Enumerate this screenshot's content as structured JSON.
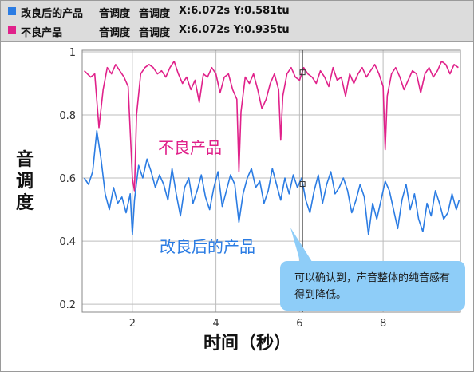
{
  "legend": [
    {
      "name": "改良后的产品",
      "color": "#2b7ce3",
      "label1": "音调度",
      "label2": "音调度",
      "readout": "X:6.072s Y:0.581tu"
    },
    {
      "name": "不良产品",
      "color": "#e0218a",
      "label1": "音调度",
      "label2": "音调度",
      "readout": "X:6.072s Y:0.935tu"
    }
  ],
  "callout": {
    "text": "可以确认到，声音整体的纯音感有得到降低。"
  },
  "chart_data": {
    "type": "line",
    "xlabel": "时间（秒）",
    "ylabel": "音调度",
    "xlim": [
      0.8,
      9.85
    ],
    "ylim": [
      0.175,
      1.005
    ],
    "xticks": [
      2,
      4,
      6,
      8
    ],
    "yticks": [
      0.2,
      0.4,
      0.6,
      0.8,
      1
    ],
    "ytick_labels": [
      "0.2",
      "0.4",
      "0.6",
      "0.8",
      "1"
    ],
    "grid": true,
    "cursor_x": 6.072,
    "annotations": [
      {
        "text": "不良产品",
        "color": "#e0218a"
      },
      {
        "text": "改良后的产品",
        "color": "#2b7ce3"
      }
    ],
    "series": [
      {
        "name": "不良产品",
        "color": "#e0218a",
        "x": [
          0.85,
          1.0,
          1.1,
          1.2,
          1.3,
          1.4,
          1.5,
          1.6,
          1.7,
          1.8,
          1.9,
          2.0,
          2.05,
          2.1,
          2.2,
          2.3,
          2.4,
          2.5,
          2.6,
          2.7,
          2.8,
          2.9,
          3.0,
          3.1,
          3.2,
          3.3,
          3.4,
          3.5,
          3.6,
          3.7,
          3.8,
          3.9,
          4.0,
          4.1,
          4.2,
          4.3,
          4.4,
          4.5,
          4.55,
          4.6,
          4.7,
          4.8,
          4.9,
          5.0,
          5.1,
          5.2,
          5.3,
          5.4,
          5.5,
          5.55,
          5.6,
          5.7,
          5.8,
          5.9,
          6.0,
          6.1,
          6.2,
          6.3,
          6.4,
          6.5,
          6.6,
          6.7,
          6.8,
          6.9,
          7.0,
          7.1,
          7.2,
          7.3,
          7.4,
          7.5,
          7.6,
          7.7,
          7.8,
          7.9,
          8.0,
          8.05,
          8.1,
          8.2,
          8.3,
          8.4,
          8.5,
          8.6,
          8.7,
          8.8,
          8.9,
          9.0,
          9.1,
          9.2,
          9.3,
          9.4,
          9.5,
          9.6,
          9.7,
          9.8
        ],
        "values": [
          0.94,
          0.92,
          0.93,
          0.76,
          0.88,
          0.95,
          0.93,
          0.96,
          0.94,
          0.92,
          0.89,
          0.6,
          0.56,
          0.8,
          0.93,
          0.95,
          0.96,
          0.95,
          0.93,
          0.94,
          0.92,
          0.95,
          0.97,
          0.93,
          0.9,
          0.92,
          0.88,
          0.91,
          0.84,
          0.93,
          0.92,
          0.95,
          0.93,
          0.87,
          0.92,
          0.93,
          0.88,
          0.85,
          0.62,
          0.81,
          0.92,
          0.9,
          0.93,
          0.88,
          0.82,
          0.85,
          0.9,
          0.93,
          0.88,
          0.72,
          0.86,
          0.93,
          0.95,
          0.92,
          0.91,
          0.95,
          0.93,
          0.92,
          0.9,
          0.94,
          0.92,
          0.89,
          0.95,
          0.91,
          0.92,
          0.86,
          0.93,
          0.9,
          0.93,
          0.95,
          0.92,
          0.94,
          0.96,
          0.93,
          0.89,
          0.69,
          0.86,
          0.93,
          0.95,
          0.92,
          0.88,
          0.91,
          0.94,
          0.93,
          0.87,
          0.93,
          0.95,
          0.92,
          0.94,
          0.97,
          0.96,
          0.93,
          0.96,
          0.95
        ]
      },
      {
        "name": "改良后的产品",
        "color": "#2b7ce3",
        "x": [
          0.85,
          0.95,
          1.05,
          1.15,
          1.25,
          1.35,
          1.45,
          1.55,
          1.65,
          1.75,
          1.85,
          1.95,
          2.0,
          2.05,
          2.15,
          2.25,
          2.35,
          2.45,
          2.55,
          2.65,
          2.75,
          2.85,
          2.95,
          3.05,
          3.15,
          3.25,
          3.35,
          3.45,
          3.55,
          3.65,
          3.75,
          3.85,
          3.95,
          4.05,
          4.15,
          4.25,
          4.35,
          4.45,
          4.55,
          4.65,
          4.75,
          4.85,
          4.95,
          5.05,
          5.15,
          5.25,
          5.35,
          5.45,
          5.55,
          5.65,
          5.75,
          5.85,
          5.95,
          6.05,
          6.15,
          6.25,
          6.35,
          6.45,
          6.55,
          6.65,
          6.75,
          6.85,
          6.95,
          7.05,
          7.15,
          7.25,
          7.35,
          7.45,
          7.55,
          7.65,
          7.75,
          7.85,
          7.95,
          8.05,
          8.15,
          8.25,
          8.35,
          8.45,
          8.55,
          8.65,
          8.75,
          8.85,
          8.95,
          9.05,
          9.15,
          9.25,
          9.35,
          9.45,
          9.55,
          9.65,
          9.75,
          9.82
        ],
        "values": [
          0.6,
          0.58,
          0.62,
          0.75,
          0.66,
          0.55,
          0.5,
          0.57,
          0.52,
          0.54,
          0.49,
          0.55,
          0.42,
          0.53,
          0.64,
          0.6,
          0.66,
          0.62,
          0.57,
          0.61,
          0.58,
          0.53,
          0.63,
          0.55,
          0.48,
          0.57,
          0.6,
          0.52,
          0.56,
          0.61,
          0.54,
          0.5,
          0.57,
          0.62,
          0.51,
          0.56,
          0.61,
          0.58,
          0.46,
          0.55,
          0.6,
          0.63,
          0.57,
          0.59,
          0.52,
          0.56,
          0.63,
          0.58,
          0.53,
          0.6,
          0.55,
          0.61,
          0.57,
          0.6,
          0.53,
          0.49,
          0.56,
          0.61,
          0.52,
          0.58,
          0.62,
          0.55,
          0.57,
          0.6,
          0.56,
          0.49,
          0.53,
          0.58,
          0.54,
          0.42,
          0.52,
          0.47,
          0.53,
          0.59,
          0.56,
          0.5,
          0.44,
          0.53,
          0.58,
          0.5,
          0.55,
          0.47,
          0.43,
          0.52,
          0.48,
          0.56,
          0.52,
          0.47,
          0.49,
          0.55,
          0.5,
          0.53
        ]
      }
    ]
  }
}
